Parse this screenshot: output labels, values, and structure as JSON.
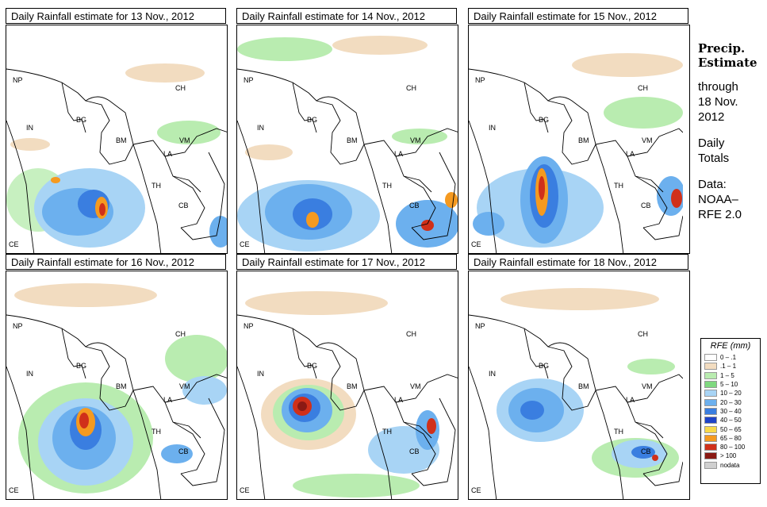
{
  "panels": [
    {
      "title": "Daily Rainfall estimate for  13 Nov., 2012"
    },
    {
      "title": "Daily Rainfall estimate for  14 Nov., 2012"
    },
    {
      "title": "Daily Rainfall estimate for  15 Nov., 2012"
    },
    {
      "title": "Daily Rainfall estimate for  16 Nov., 2012"
    },
    {
      "title": "Daily Rainfall estimate for  17 Nov., 2012"
    },
    {
      "title": "Daily Rainfall estimate for  18 Nov., 2012"
    }
  ],
  "country_labels": {
    "np": "NP",
    "ch": "CH",
    "in": "IN",
    "bg": "BG",
    "bm": "BM",
    "vm": "VM",
    "la": "LA",
    "th": "TH",
    "cb": "CB",
    "ce": "CE"
  },
  "side": {
    "line1": "Precip.",
    "line2": "Estimate",
    "line3": "through",
    "line4": "18 Nov.",
    "line5": "2012",
    "line6": "Daily",
    "line7": "Totals",
    "line8": "Data:",
    "line9": "NOAA–",
    "line10": "RFE 2.0"
  },
  "legend": {
    "title": "RFE (mm)",
    "items": [
      {
        "label": "0 – .1",
        "color": "#ffffff"
      },
      {
        "label": ".1 – 1",
        "color": "#f2dcc0"
      },
      {
        "label": "1 – 5",
        "color": "#b9ecb0"
      },
      {
        "label": "5 – 10",
        "color": "#7fd87f"
      },
      {
        "label": "10 – 20",
        "color": "#a8d4f5"
      },
      {
        "label": "20 – 30",
        "color": "#6cb0ee"
      },
      {
        "label": "30 – 40",
        "color": "#3a7ee0"
      },
      {
        "label": "40 – 50",
        "color": "#1f44c8"
      },
      {
        "label": "50 – 65",
        "color": "#f8d94a"
      },
      {
        "label": "65 – 80",
        "color": "#f59a20"
      },
      {
        "label": "80 – 100",
        "color": "#d0301a"
      },
      {
        "label": "> 100",
        "color": "#8a1a14"
      },
      {
        "label": "nodata",
        "color": "#d0d0d0"
      }
    ]
  }
}
